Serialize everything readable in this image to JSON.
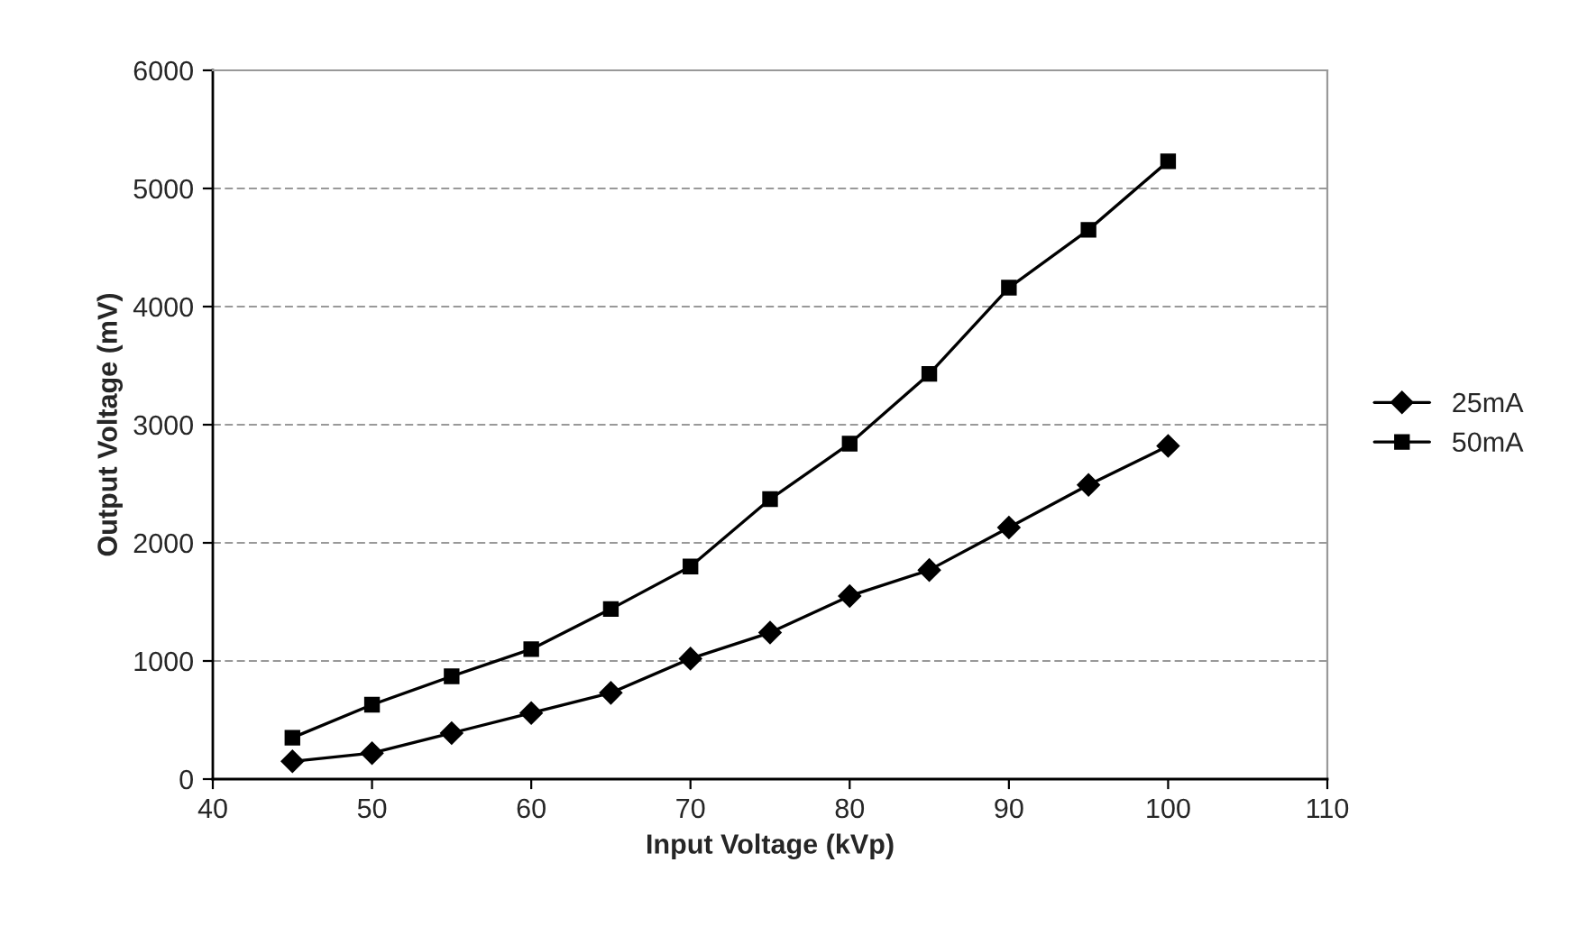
{
  "chart_data": {
    "type": "line",
    "xlabel": "Input Voltage (kVp)",
    "ylabel": "Output Voltage (mV)",
    "x": [
      45,
      50,
      55,
      60,
      65,
      70,
      75,
      80,
      85,
      90,
      95,
      100
    ],
    "series": [
      {
        "name": "25mA",
        "color": "#000000",
        "marker": "diamond",
        "values": [
          150,
          220,
          390,
          560,
          730,
          1020,
          1240,
          1550,
          1770,
          2130,
          2490,
          2820
        ]
      },
      {
        "name": "50mA",
        "color": "#000000",
        "marker": "square",
        "values": [
          350,
          630,
          870,
          1100,
          1440,
          1800,
          2370,
          2840,
          3430,
          4160,
          4650,
          5230
        ]
      }
    ],
    "xlim": [
      40,
      110
    ],
    "xticks": [
      40,
      50,
      60,
      70,
      80,
      90,
      100,
      110
    ],
    "ylim": [
      0,
      6000
    ],
    "yticks": [
      0,
      1000,
      2000,
      3000,
      4000,
      5000,
      6000
    ],
    "grid": "y",
    "legend": "right",
    "line_style": "solid"
  }
}
